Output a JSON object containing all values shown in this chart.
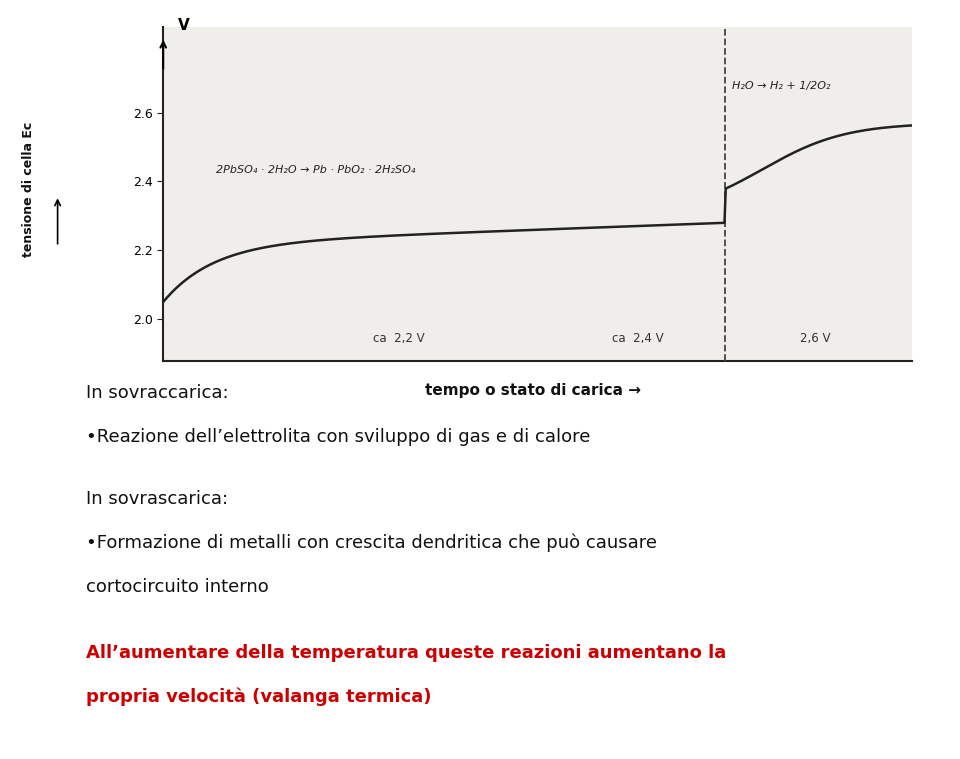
{
  "bg_color": "#ffffff",
  "chart_bg": "#f0eeea",
  "ylabel": "tensione di cella Ec",
  "xlabel": "tempo o stato di carica →",
  "yticks": [
    2.0,
    2.2,
    2.4,
    2.6
  ],
  "ytick_labels": [
    "2.0",
    "2.2",
    "2.4",
    "2.6"
  ],
  "curve_color": "#222222",
  "dashed_line_x": 0.75,
  "annotation_reaction1": "2PbSO₄ · 2H₂O → Pb · PbO₂ · 2H₂SO₄",
  "annotation_reaction2": "H₂O → H₂ + 1/2O₂",
  "annotation_ca22": "ca  2,2 V",
  "annotation_ca24": "ca  2,4 V",
  "annotation_26": "2,6 V",
  "v_label": "V",
  "text1_line1": "In sovraccarica:",
  "text1_line2": "•Reazione dell’elettrolita con sviluppo di gas e di calore",
  "text2_line1": "In sovrascarica:",
  "text2_line2": "•Formazione di metalli con crescita dendritica che può causare",
  "text2_line3": "cortocircuito interno",
  "text3_line1": "All’aumentare della temperatura queste reazioni aumentano la",
  "text3_line2": "propria velocità (valanga termica)",
  "text_black_color": "#111111",
  "text_red_color": "#cc0000",
  "font_main": "Comic Sans MS"
}
